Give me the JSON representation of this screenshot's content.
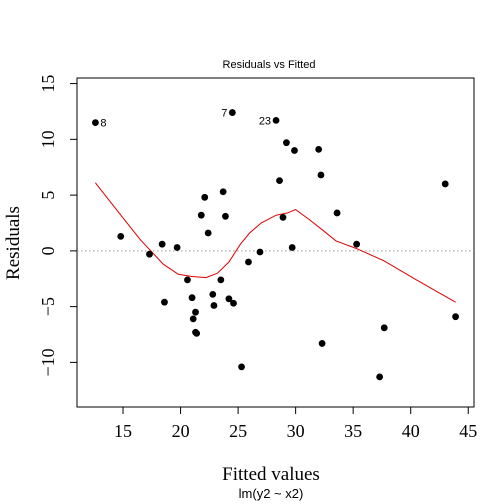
{
  "chart_data": {
    "type": "scatter",
    "title": "Residuals vs Fitted",
    "xlabel": "Fitted values",
    "ylabel": "Residuals",
    "subtitle": "lm(y2 ~ x2)",
    "xlim": [
      11,
      45.5
    ],
    "ylim": [
      -14,
      15.5
    ],
    "xticks": [
      15,
      20,
      25,
      30,
      35,
      40,
      45
    ],
    "yticks": [
      -10,
      -5,
      0,
      5,
      10,
      15
    ],
    "grid": false,
    "reference_line": {
      "y": 0,
      "style": "dotted",
      "color": "#999999"
    },
    "point_color": "#000000",
    "smooth_color": "#dd0000",
    "points": [
      {
        "x": 12.6,
        "y": 11.5,
        "label": "8"
      },
      {
        "x": 14.8,
        "y": 1.3
      },
      {
        "x": 17.3,
        "y": -0.3
      },
      {
        "x": 18.4,
        "y": 0.6
      },
      {
        "x": 18.6,
        "y": -4.6
      },
      {
        "x": 19.7,
        "y": 0.3
      },
      {
        "x": 20.6,
        "y": -2.6
      },
      {
        "x": 21.0,
        "y": -4.2
      },
      {
        "x": 21.1,
        "y": -6.1
      },
      {
        "x": 21.3,
        "y": -5.5
      },
      {
        "x": 21.3,
        "y": -7.3
      },
      {
        "x": 21.4,
        "y": -7.4
      },
      {
        "x": 21.8,
        "y": 3.2
      },
      {
        "x": 22.1,
        "y": 4.8
      },
      {
        "x": 22.4,
        "y": 1.6
      },
      {
        "x": 22.8,
        "y": -3.9
      },
      {
        "x": 22.9,
        "y": -4.9
      },
      {
        "x": 23.5,
        "y": -2.6
      },
      {
        "x": 23.7,
        "y": 5.3
      },
      {
        "x": 23.9,
        "y": 3.1
      },
      {
        "x": 24.2,
        "y": -4.3
      },
      {
        "x": 24.5,
        "y": 12.4,
        "label": "7"
      },
      {
        "x": 24.6,
        "y": -4.7
      },
      {
        "x": 25.3,
        "y": -10.4
      },
      {
        "x": 25.9,
        "y": -1.0
      },
      {
        "x": 26.9,
        "y": -0.1
      },
      {
        "x": 28.3,
        "y": 11.7,
        "label": "23"
      },
      {
        "x": 28.6,
        "y": 6.3
      },
      {
        "x": 28.9,
        "y": 3.0
      },
      {
        "x": 29.2,
        "y": 9.7
      },
      {
        "x": 29.7,
        "y": 0.3
      },
      {
        "x": 29.9,
        "y": 9.0
      },
      {
        "x": 32.0,
        "y": 9.1
      },
      {
        "x": 32.2,
        "y": 6.8
      },
      {
        "x": 32.3,
        "y": -8.3
      },
      {
        "x": 33.6,
        "y": 3.4
      },
      {
        "x": 35.3,
        "y": 0.6
      },
      {
        "x": 37.3,
        "y": -11.3
      },
      {
        "x": 37.7,
        "y": -6.9
      },
      {
        "x": 43.0,
        "y": 6.0
      },
      {
        "x": 43.9,
        "y": -5.9
      }
    ],
    "smooth_line": [
      {
        "x": 12.6,
        "y": 6.1
      },
      {
        "x": 14.5,
        "y": 3.6
      },
      {
        "x": 16.5,
        "y": 1.0
      },
      {
        "x": 18.5,
        "y": -1.2
      },
      {
        "x": 19.8,
        "y": -2.1
      },
      {
        "x": 21.0,
        "y": -2.3
      },
      {
        "x": 22.2,
        "y": -2.4
      },
      {
        "x": 23.2,
        "y": -2.0
      },
      {
        "x": 24.2,
        "y": -1.0
      },
      {
        "x": 25.2,
        "y": 0.6
      },
      {
        "x": 26.0,
        "y": 1.6
      },
      {
        "x": 27.0,
        "y": 2.5
      },
      {
        "x": 28.3,
        "y": 3.2
      },
      {
        "x": 29.3,
        "y": 3.4
      },
      {
        "x": 30.0,
        "y": 3.7
      },
      {
        "x": 31.2,
        "y": 2.8
      },
      {
        "x": 32.3,
        "y": 1.9
      },
      {
        "x": 33.5,
        "y": 0.9
      },
      {
        "x": 35.3,
        "y": 0.2
      },
      {
        "x": 37.7,
        "y": -0.9
      },
      {
        "x": 40.5,
        "y": -2.6
      },
      {
        "x": 43.9,
        "y": -4.6
      }
    ]
  }
}
